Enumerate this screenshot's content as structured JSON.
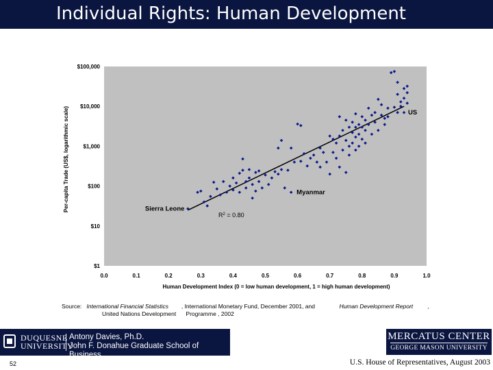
{
  "slide": {
    "title": "Individual Rights: Human Development",
    "page_number": "52",
    "footer": "U.S. House of Representatives, August 2003"
  },
  "source": {
    "prefix": "Source:",
    "title1": "International Financial Statistics",
    "text1": ", International Monetary Fund, December 2001, and",
    "title2": "Human Development Report",
    "text2": ",",
    "line2": "United Nations Development      Programme , 2002"
  },
  "logos": {
    "duquesne_line1": "DUQUESNE",
    "duquesne_line2": "UNIVERSITY",
    "author_line1": "Antony Davies, Ph.D.",
    "author_line2": "John F. Donahue Graduate School of Business",
    "mercatus_line1": "MERCATUS CENTER",
    "mercatus_line2": "GEORGE MASON UNIVERSITY"
  },
  "colors": {
    "title_bar": "#0a1540",
    "plot_bg": "#c0c0c0",
    "points": "#0b1a8c"
  },
  "chart_data": {
    "type": "scatter",
    "xlabel": "Human Development Index (0 = low human development, 1 = high human development)",
    "ylabel": "Per-capita Trade (US$, logarithmic scale)",
    "xlim": [
      0,
      1
    ],
    "ylim": [
      1,
      100000
    ],
    "y_scale": "log",
    "grid": false,
    "x_ticks": [
      "0.0",
      "0.1",
      "0.2",
      "0.3",
      "0.4",
      "0.5",
      "0.6",
      "0.7",
      "0.8",
      "0.9",
      "1.0"
    ],
    "y_ticks": [
      "$1",
      "$10",
      "$100",
      "$1,000",
      "$10,000",
      "$100,000"
    ],
    "trendline": {
      "x": [
        0.26,
        0.93
      ],
      "y": [
        25,
        10000
      ]
    },
    "annotations": [
      {
        "text": "US",
        "x": 0.93,
        "y": 7000
      },
      {
        "text": "Myanmar",
        "x": 0.58,
        "y": 70
      },
      {
        "text": "Sierra Leone",
        "x": 0.26,
        "y": 27
      }
    ],
    "r_squared_text": {
      "r": "R",
      "sup": "2",
      "rest": " = 0.80"
    },
    "points": [
      [
        0.26,
        27
      ],
      [
        0.29,
        70
      ],
      [
        0.3,
        75
      ],
      [
        0.31,
        40
      ],
      [
        0.32,
        32
      ],
      [
        0.33,
        55
      ],
      [
        0.34,
        125
      ],
      [
        0.35,
        85
      ],
      [
        0.36,
        60
      ],
      [
        0.37,
        130
      ],
      [
        0.38,
        70
      ],
      [
        0.39,
        100
      ],
      [
        0.4,
        160
      ],
      [
        0.4,
        80
      ],
      [
        0.41,
        120
      ],
      [
        0.42,
        210
      ],
      [
        0.42,
        70
      ],
      [
        0.43,
        480
      ],
      [
        0.43,
        250
      ],
      [
        0.44,
        130
      ],
      [
        0.44,
        90
      ],
      [
        0.45,
        160
      ],
      [
        0.45,
        260
      ],
      [
        0.46,
        110
      ],
      [
        0.46,
        50
      ],
      [
        0.47,
        220
      ],
      [
        0.47,
        75
      ],
      [
        0.48,
        240
      ],
      [
        0.48,
        130
      ],
      [
        0.49,
        90
      ],
      [
        0.5,
        190
      ],
      [
        0.51,
        110
      ],
      [
        0.52,
        160
      ],
      [
        0.53,
        230
      ],
      [
        0.54,
        900
      ],
      [
        0.54,
        200
      ],
      [
        0.55,
        1400
      ],
      [
        0.55,
        260
      ],
      [
        0.56,
        90
      ],
      [
        0.57,
        250
      ],
      [
        0.58,
        900
      ],
      [
        0.58,
        70
      ],
      [
        0.59,
        400
      ],
      [
        0.6,
        3600
      ],
      [
        0.61,
        3300
      ],
      [
        0.61,
        420
      ],
      [
        0.62,
        650
      ],
      [
        0.63,
        320
      ],
      [
        0.64,
        500
      ],
      [
        0.65,
        600
      ],
      [
        0.66,
        400
      ],
      [
        0.67,
        900
      ],
      [
        0.67,
        300
      ],
      [
        0.68,
        700
      ],
      [
        0.69,
        400
      ],
      [
        0.7,
        1800
      ],
      [
        0.7,
        200
      ],
      [
        0.71,
        1500
      ],
      [
        0.71,
        700
      ],
      [
        0.72,
        1200
      ],
      [
        0.72,
        500
      ],
      [
        0.73,
        5500
      ],
      [
        0.73,
        1800
      ],
      [
        0.73,
        300
      ],
      [
        0.74,
        2500
      ],
      [
        0.74,
        800
      ],
      [
        0.75,
        4500
      ],
      [
        0.75,
        1400
      ],
      [
        0.75,
        220
      ],
      [
        0.76,
        3000
      ],
      [
        0.76,
        1000
      ],
      [
        0.76,
        600
      ],
      [
        0.77,
        4000
      ],
      [
        0.77,
        2200
      ],
      [
        0.77,
        1200
      ],
      [
        0.78,
        6500
      ],
      [
        0.78,
        3000
      ],
      [
        0.78,
        1700
      ],
      [
        0.78,
        800
      ],
      [
        0.79,
        3500
      ],
      [
        0.79,
        2000
      ],
      [
        0.79,
        1000
      ],
      [
        0.8,
        5500
      ],
      [
        0.8,
        3000
      ],
      [
        0.8,
        1500
      ],
      [
        0.81,
        4500
      ],
      [
        0.81,
        2500
      ],
      [
        0.81,
        1200
      ],
      [
        0.82,
        9000
      ],
      [
        0.82,
        3500
      ],
      [
        0.83,
        6000
      ],
      [
        0.83,
        2000
      ],
      [
        0.84,
        7000
      ],
      [
        0.84,
        4000
      ],
      [
        0.85,
        15000
      ],
      [
        0.85,
        2500
      ],
      [
        0.86,
        11000
      ],
      [
        0.86,
        6000
      ],
      [
        0.87,
        5000
      ],
      [
        0.87,
        3500
      ],
      [
        0.88,
        9000
      ],
      [
        0.88,
        5500
      ],
      [
        0.89,
        70000
      ],
      [
        0.9,
        75000
      ],
      [
        0.9,
        9500
      ],
      [
        0.91,
        40000
      ],
      [
        0.91,
        20000
      ],
      [
        0.91,
        7000
      ],
      [
        0.92,
        13000
      ],
      [
        0.92,
        10000
      ],
      [
        0.93,
        28000
      ],
      [
        0.93,
        16000
      ],
      [
        0.93,
        7000
      ],
      [
        0.94,
        22000
      ],
      [
        0.94,
        12000
      ],
      [
        0.94,
        32000
      ]
    ]
  }
}
